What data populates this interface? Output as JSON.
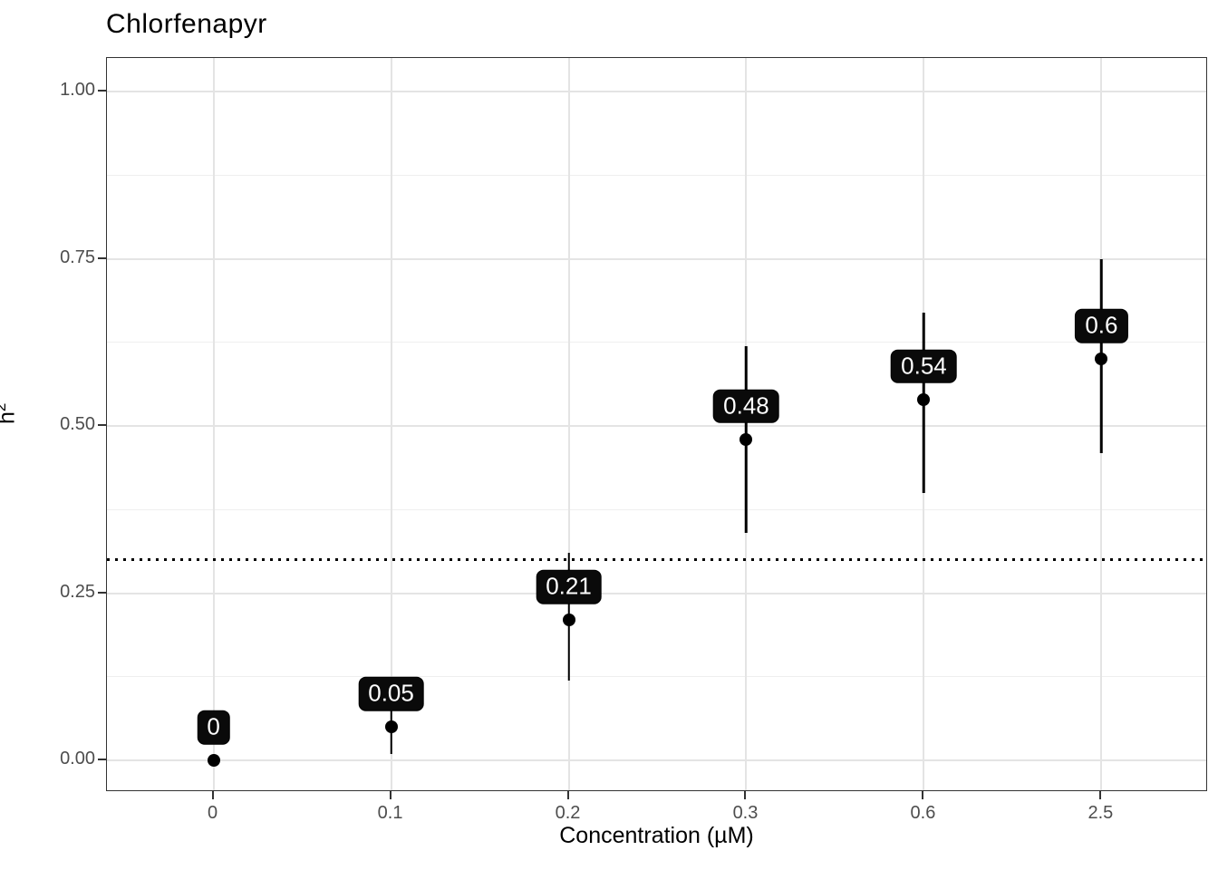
{
  "title": "Chlorfenapyr",
  "axes": {
    "x": {
      "label": "Concentration (µM)",
      "tick_labels": [
        "0",
        "0.1",
        "0.2",
        "0.3",
        "0.6",
        "2.5"
      ]
    },
    "y": {
      "label_base": "h",
      "label_sup": "2",
      "tick_labels": [
        "0.00",
        "0.25",
        "0.50",
        "0.75",
        "1.00"
      ],
      "tick_values": [
        0,
        0.25,
        0.5,
        0.75,
        1.0
      ],
      "minor_tick_values": [
        0.125,
        0.375,
        0.625,
        0.875
      ],
      "range": [
        -0.047,
        1.05
      ]
    }
  },
  "reference_line": {
    "y": 0.3,
    "style": "dotted",
    "color": "#000000"
  },
  "colors": {
    "point": "#000000",
    "error_bar": "#000000",
    "label_background": "#0a0a0a",
    "label_text": "#ffffff",
    "grid_major": "#e4e4e4",
    "grid_minor": "#efefef",
    "panel_border": "#333333",
    "axis_text": "#4d4d4d"
  },
  "chart_data": {
    "type": "scatter",
    "title": "Chlorfenapyr",
    "xlabel": "Concentration (µM)",
    "ylabel": "h^2",
    "categories": [
      "0",
      "0.1",
      "0.2",
      "0.3",
      "0.6",
      "2.5"
    ],
    "values": [
      0,
      0.05,
      0.21,
      0.48,
      0.54,
      0.6
    ],
    "point_labels": [
      "0",
      "0.05",
      "0.21",
      "0.48",
      "0.54",
      "0.6"
    ],
    "error_low": [
      0,
      0.01,
      0.12,
      0.34,
      0.4,
      0.46
    ],
    "error_high": [
      0,
      0.09,
      0.31,
      0.62,
      0.67,
      0.75
    ],
    "hline": 0.3,
    "ylim": [
      -0.047,
      1.05
    ],
    "grid": true,
    "legend": "none"
  }
}
